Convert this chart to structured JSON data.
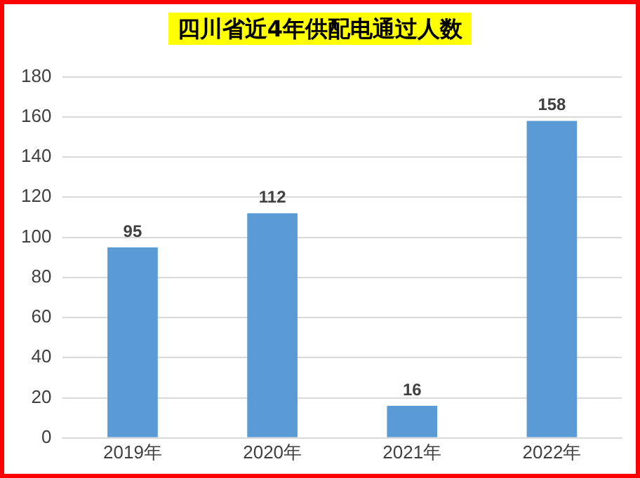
{
  "chart_data": {
    "type": "bar",
    "title": "四川省近4年供配电通过人数",
    "categories": [
      "2019年",
      "2020年",
      "2021年",
      "2022年"
    ],
    "values": [
      95,
      112,
      16,
      158
    ],
    "color": "#5b9bd5",
    "ylim": [
      0,
      180
    ],
    "yticks": [
      0,
      20,
      40,
      60,
      80,
      100,
      120,
      140,
      160,
      180
    ],
    "grid": "y",
    "data_labels": true,
    "legend": false
  }
}
